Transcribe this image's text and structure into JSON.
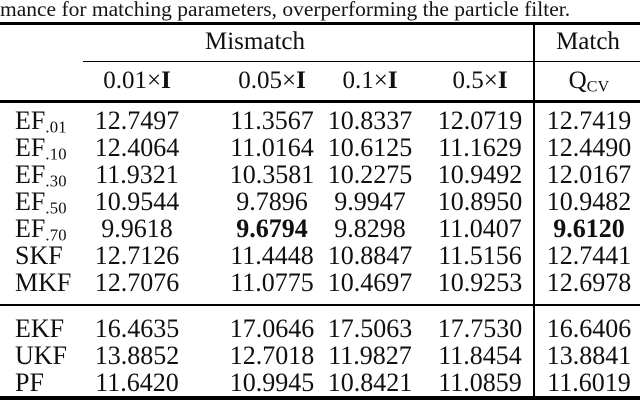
{
  "caption": "mance for matching parameters, overperforming the particle filter.",
  "colors": {
    "background": "#ffffff",
    "text": "#101010",
    "rule": "#000000"
  },
  "table": {
    "group_headers": {
      "mismatch": "Mismatch",
      "match": "Match"
    },
    "mismatch_columns": [
      {
        "scale": "0.01×",
        "matrix": "I"
      },
      {
        "scale": "0.05×",
        "matrix": "I"
      },
      {
        "scale": "0.1×",
        "matrix": "I"
      },
      {
        "scale": "0.5×",
        "matrix": "I"
      }
    ],
    "match_column": {
      "base": "Q",
      "subscript": "CV"
    },
    "groups": [
      {
        "rows": [
          {
            "label": {
              "base": "EF",
              "subscript": ".01"
            },
            "values": [
              "12.7497",
              "11.3567",
              "10.8337",
              "12.0719",
              "12.7419"
            ],
            "bold": [
              false,
              false,
              false,
              false,
              false
            ]
          },
          {
            "label": {
              "base": "EF",
              "subscript": ".10"
            },
            "values": [
              "12.4064",
              "11.0164",
              "10.6125",
              "11.1629",
              "12.4490"
            ],
            "bold": [
              false,
              false,
              false,
              false,
              false
            ]
          },
          {
            "label": {
              "base": "EF",
              "subscript": ".30"
            },
            "values": [
              "11.9321",
              "10.3581",
              "10.2275",
              "10.9492",
              "12.0167"
            ],
            "bold": [
              false,
              false,
              false,
              false,
              false
            ]
          },
          {
            "label": {
              "base": "EF",
              "subscript": ".50"
            },
            "values": [
              "10.9544",
              "9.7896",
              "9.9947",
              "10.8950",
              "10.9482"
            ],
            "bold": [
              false,
              false,
              false,
              false,
              false
            ]
          },
          {
            "label": {
              "base": "EF",
              "subscript": ".70"
            },
            "values": [
              "9.9618",
              "9.6794",
              "9.8298",
              "11.0407",
              "9.6120"
            ],
            "bold": [
              false,
              true,
              false,
              false,
              true
            ]
          },
          {
            "label": {
              "base": "SKF",
              "subscript": ""
            },
            "values": [
              "12.7126",
              "11.4448",
              "10.8847",
              "11.5156",
              "12.7441"
            ],
            "bold": [
              false,
              false,
              false,
              false,
              false
            ]
          },
          {
            "label": {
              "base": "MKF",
              "subscript": ""
            },
            "values": [
              "12.7076",
              "11.0775",
              "10.4697",
              "10.9253",
              "12.6978"
            ],
            "bold": [
              false,
              false,
              false,
              false,
              false
            ]
          }
        ]
      },
      {
        "rows": [
          {
            "label": {
              "base": "EKF",
              "subscript": ""
            },
            "values": [
              "16.4635",
              "17.0646",
              "17.5063",
              "17.7530",
              "16.6406"
            ],
            "bold": [
              false,
              false,
              false,
              false,
              false
            ]
          },
          {
            "label": {
              "base": "UKF",
              "subscript": ""
            },
            "values": [
              "13.8852",
              "12.7018",
              "11.9827",
              "11.8454",
              "13.8841"
            ],
            "bold": [
              false,
              false,
              false,
              false,
              false
            ]
          },
          {
            "label": {
              "base": "PF",
              "subscript": ""
            },
            "values": [
              "11.6420",
              "10.9945",
              "10.8421",
              "11.0859",
              "11.6019"
            ],
            "bold": [
              false,
              false,
              false,
              false,
              false
            ]
          }
        ]
      }
    ]
  }
}
